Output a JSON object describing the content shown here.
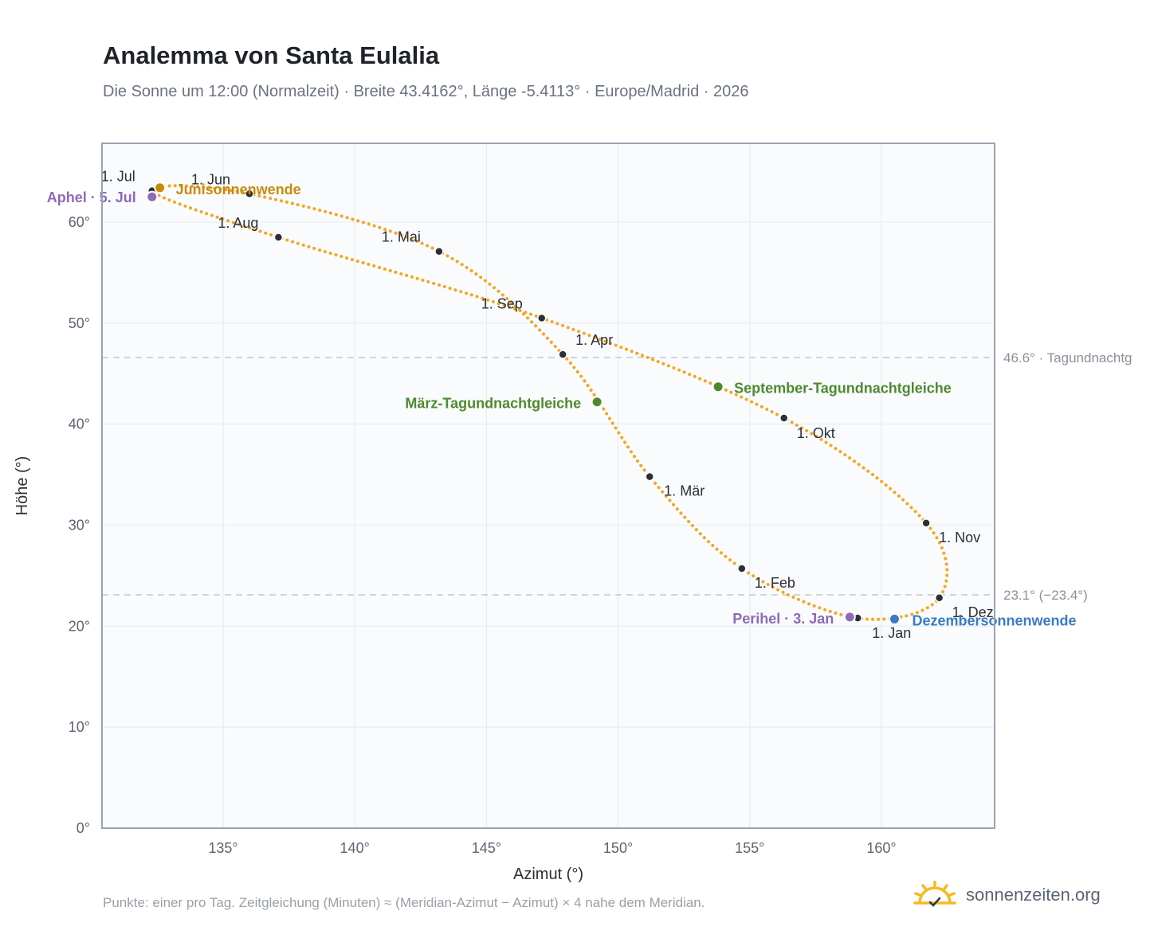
{
  "header": {
    "title": "Analemma von Santa Eulalia",
    "subtitle": "Die Sonne um 12:00 (Normalzeit) · Breite 43.4162°, Länge -5.4113° · Europe/Madrid · 2026"
  },
  "footer": {
    "note": "Punkte: einer pro Tag. Zeitgleichung (Minuten) ≈ (Meridian-Azimut − Azimut) × 4 nahe dem Meridian.",
    "brand": "sonnenzeiten.org"
  },
  "colors": {
    "curve": "#f5a623",
    "month_dot": "#2b2f36",
    "solstice_june": "#c98a0a",
    "solstice_december": "#3a7cc2",
    "equinox": "#4e8a2f",
    "apsis": "#8e6ab8",
    "reference_line": "#c3c8cf",
    "plot_bg": "#f9fbfd",
    "grid": "#e6eaef"
  },
  "chart_data": {
    "type": "scatter",
    "xlabel": "Azimut (°)",
    "ylabel": "Höhe (°)",
    "xlim": [
      130.4,
      164.3
    ],
    "ylim": [
      0,
      67.8
    ],
    "x_ticks": [
      135,
      140,
      145,
      150,
      155,
      160
    ],
    "x_tick_labels": [
      "135°",
      "140°",
      "145°",
      "150°",
      "155°",
      "160°"
    ],
    "y_ticks": [
      0,
      10,
      20,
      30,
      40,
      50,
      60
    ],
    "y_tick_labels": [
      "0°",
      "10°",
      "20°",
      "30°",
      "40°",
      "50°",
      "60°"
    ],
    "grid": true,
    "month_points": [
      {
        "label": "1. Jan",
        "x": 159.1,
        "y": 20.8
      },
      {
        "label": "1. Feb",
        "x": 154.7,
        "y": 25.7
      },
      {
        "label": "1. Mär",
        "x": 151.2,
        "y": 34.8
      },
      {
        "label": "1. Apr",
        "x": 147.9,
        "y": 46.9
      },
      {
        "label": "1. Mai",
        "x": 143.2,
        "y": 57.1
      },
      {
        "label": "1. Jun",
        "x": 136.0,
        "y": 62.8
      },
      {
        "label": "1. Jul",
        "x": 132.3,
        "y": 63.1
      },
      {
        "label": "1. Aug",
        "x": 137.1,
        "y": 58.5
      },
      {
        "label": "1. Sep",
        "x": 147.1,
        "y": 50.5
      },
      {
        "label": "1. Okt",
        "x": 156.3,
        "y": 40.6
      },
      {
        "label": "1. Nov",
        "x": 161.7,
        "y": 30.2
      },
      {
        "label": "1. Dez",
        "x": 162.2,
        "y": 22.8
      }
    ],
    "special_points": [
      {
        "label": "Junisonnenwende",
        "x": 132.6,
        "y": 63.4,
        "kind": "solstice_june"
      },
      {
        "label": "Dezembersonnenwende",
        "x": 160.5,
        "y": 20.7,
        "kind": "solstice_december"
      },
      {
        "label": "März-Tagundnachtgleiche",
        "x": 149.2,
        "y": 42.2,
        "kind": "equinox"
      },
      {
        "label": "September-Tagundnachtgleiche",
        "x": 153.8,
        "y": 43.7,
        "kind": "equinox"
      },
      {
        "label": "Aphel · 5. Jul",
        "x": 132.3,
        "y": 62.5,
        "kind": "apsis"
      },
      {
        "label": "Perihel · 3. Jan",
        "x": 158.8,
        "y": 20.9,
        "kind": "apsis"
      }
    ],
    "reference_lines": [
      {
        "y": 46.6,
        "label": "46.6° · Tagundnachtg"
      },
      {
        "y": 23.1,
        "label": "23.1° (−23.4°)"
      }
    ]
  }
}
